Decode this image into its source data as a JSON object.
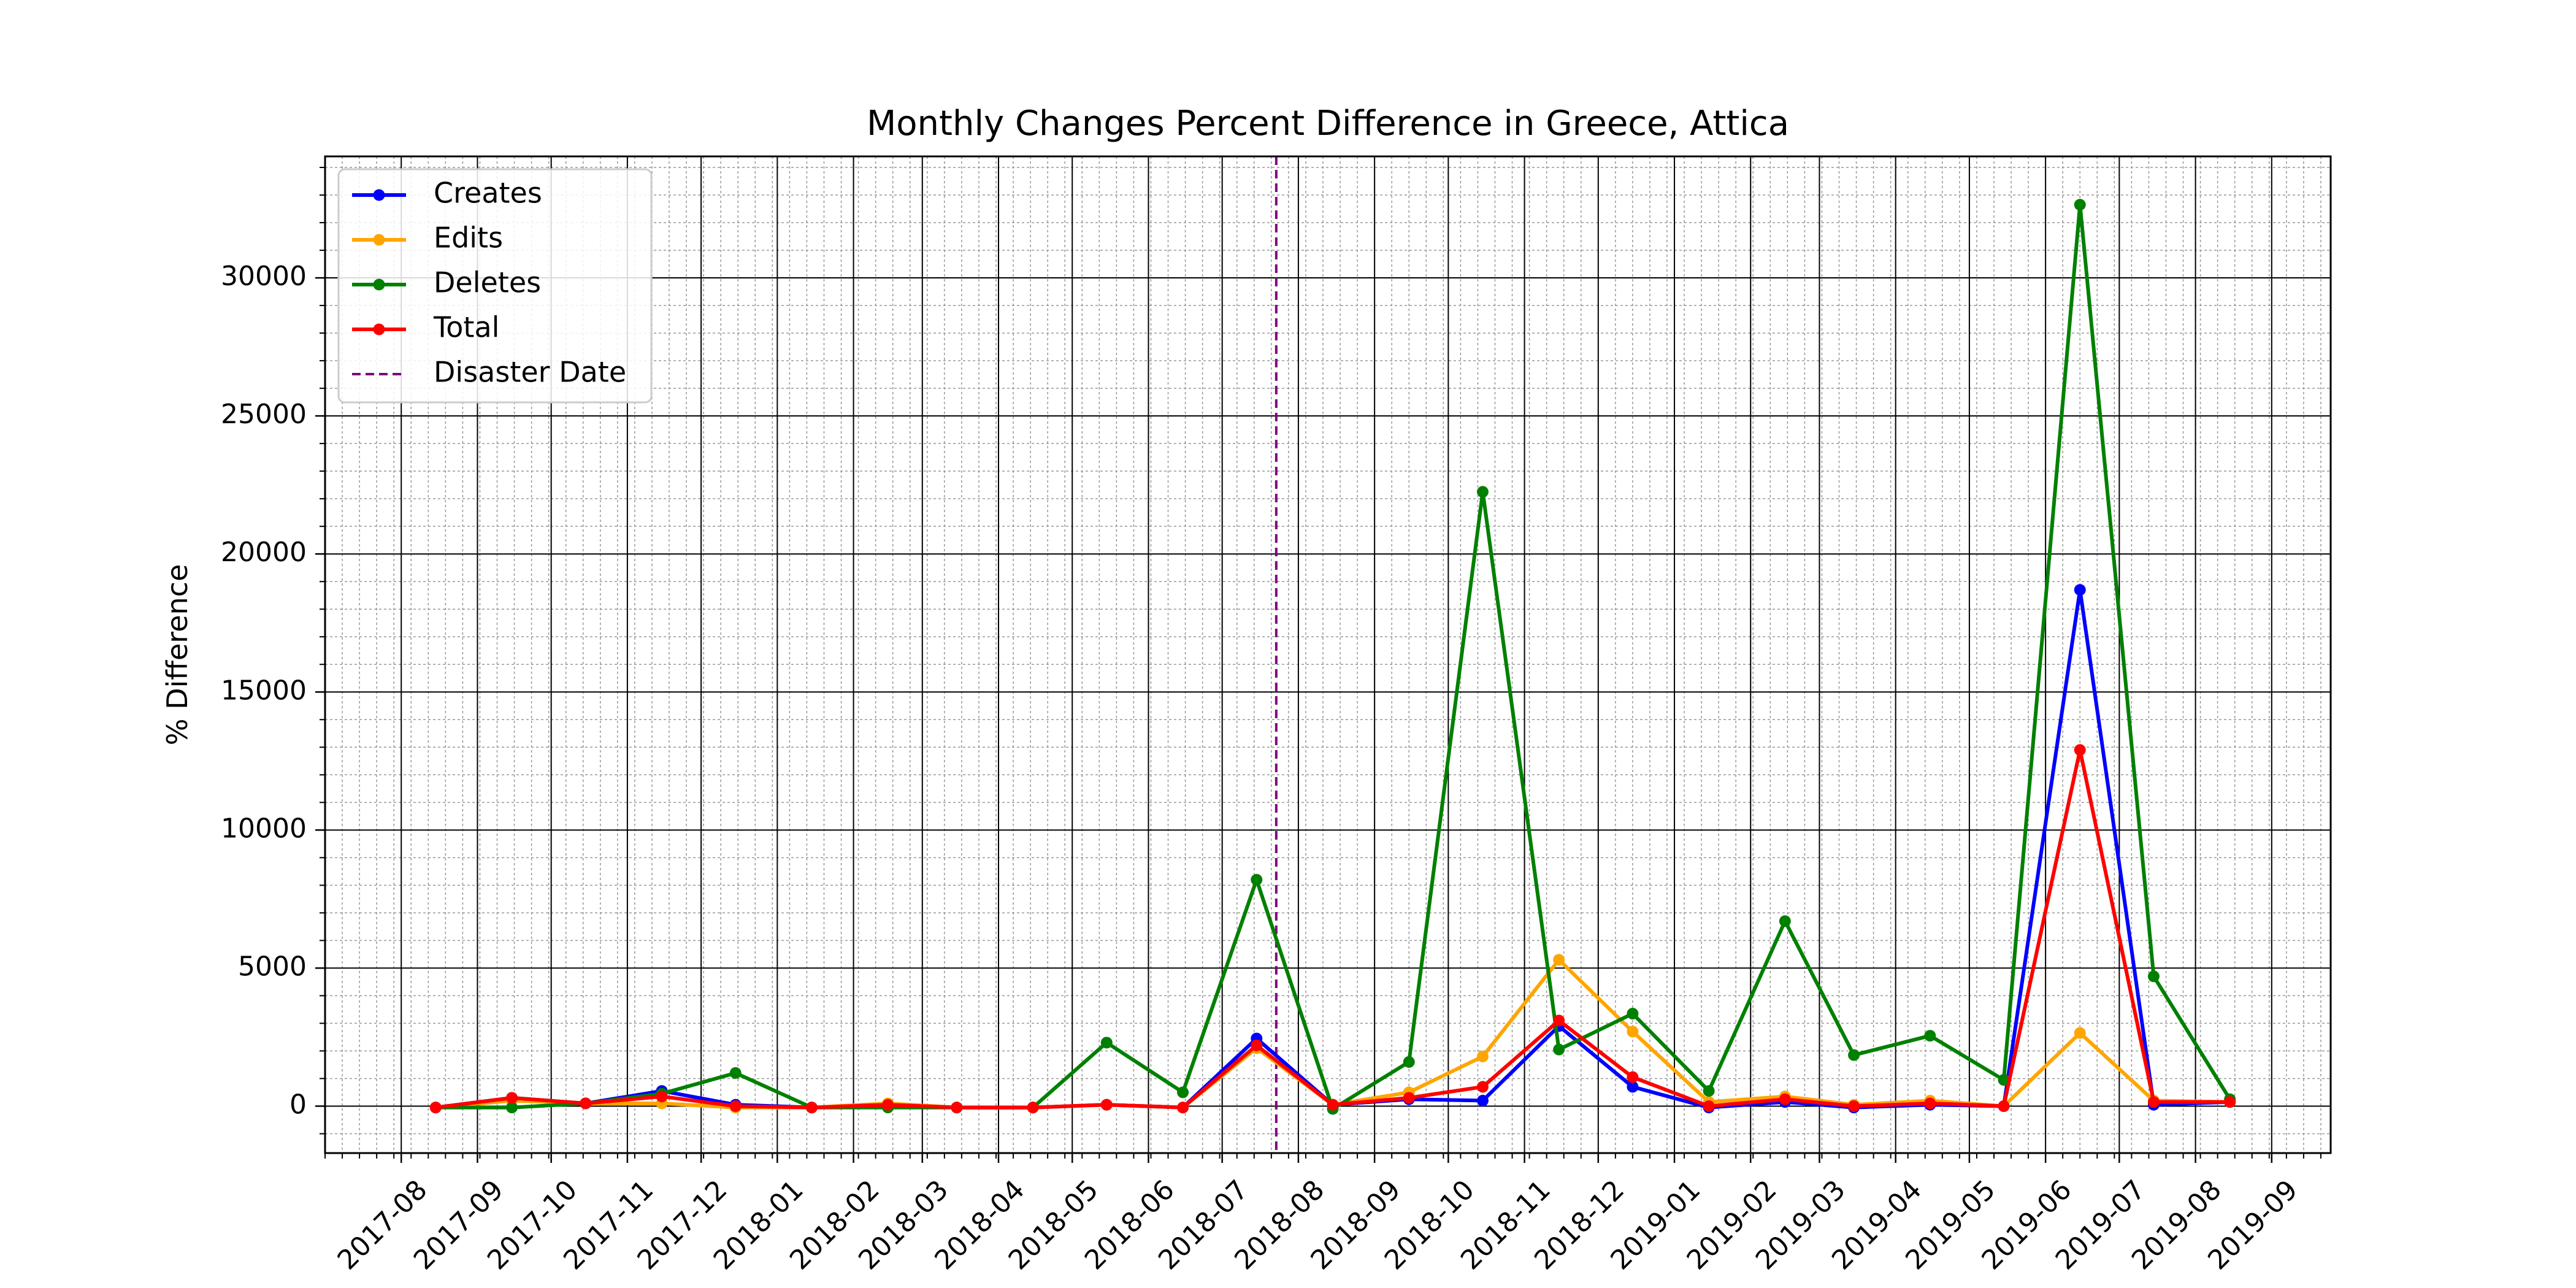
{
  "chart_data": {
    "type": "line",
    "title": "Monthly Changes Percent Difference in Greece, Attica",
    "xlabel": "",
    "ylabel": "% Difference",
    "x_dates": [
      "2017-08-01",
      "2017-09-01",
      "2017-10-01",
      "2017-11-01",
      "2017-12-01",
      "2018-01-01",
      "2018-02-01",
      "2018-03-01",
      "2018-04-01",
      "2018-05-01",
      "2018-06-01",
      "2018-07-01",
      "2018-08-01",
      "2018-09-01",
      "2018-10-01",
      "2018-11-01",
      "2018-12-01",
      "2019-01-01",
      "2019-02-01",
      "2019-03-01",
      "2019-04-01",
      "2019-05-01",
      "2019-06-01",
      "2019-07-01",
      "2019-08-01"
    ],
    "x_tick_labels": [
      "2017-08",
      "2017-09",
      "2017-10",
      "2017-11",
      "2017-12",
      "2018-01",
      "2018-02",
      "2018-03",
      "2018-04",
      "2018-05",
      "2018-06",
      "2018-07",
      "2018-08",
      "2018-09",
      "2018-10",
      "2018-11",
      "2018-12",
      "2019-01",
      "2019-02",
      "2019-03",
      "2019-04",
      "2019-05",
      "2019-06",
      "2019-07",
      "2019-08",
      "2019-09"
    ],
    "x_range": [
      "2017-07-01",
      "2019-09-25"
    ],
    "y_ticks": [
      0,
      5000,
      10000,
      15000,
      20000,
      25000,
      30000
    ],
    "y_tick_labels": [
      "0",
      "5000",
      "10000",
      "15000",
      "20000",
      "25000",
      "30000"
    ],
    "ylim": [
      -1700,
      34400
    ],
    "grid": true,
    "legend_position": "top-left",
    "disaster_date": "2018-07-23",
    "disaster_label": "Disaster Date",
    "disaster_color": "#800080",
    "series": [
      {
        "name": "Creates",
        "color": "#0000ff",
        "values": [
          -50,
          300,
          100,
          550,
          50,
          -50,
          50,
          -50,
          -50,
          50,
          -50,
          2450,
          50,
          250,
          200,
          2900,
          700,
          -50,
          150,
          -50,
          50,
          0,
          18700,
          50,
          150
        ]
      },
      {
        "name": "Edits",
        "color": "#ffa500",
        "values": [
          -50,
          200,
          100,
          100,
          -50,
          -50,
          100,
          -50,
          -50,
          50,
          -50,
          2100,
          50,
          500,
          1800,
          5300,
          2700,
          150,
          350,
          50,
          200,
          0,
          2650,
          200,
          150
        ]
      },
      {
        "name": "Deletes",
        "color": "#008000",
        "values": [
          -50,
          -50,
          100,
          450,
          1200,
          -50,
          -50,
          -50,
          -50,
          2300,
          500,
          8200,
          -100,
          1600,
          22250,
          2050,
          3350,
          550,
          6700,
          1850,
          2550,
          950,
          32650,
          4700,
          250
        ]
      },
      {
        "name": "Total",
        "color": "#ff0000",
        "values": [
          -50,
          300,
          100,
          350,
          0,
          -50,
          50,
          -50,
          -50,
          50,
          -50,
          2200,
          50,
          300,
          700,
          3100,
          1050,
          0,
          250,
          0,
          100,
          0,
          12900,
          150,
          150
        ]
      }
    ]
  }
}
